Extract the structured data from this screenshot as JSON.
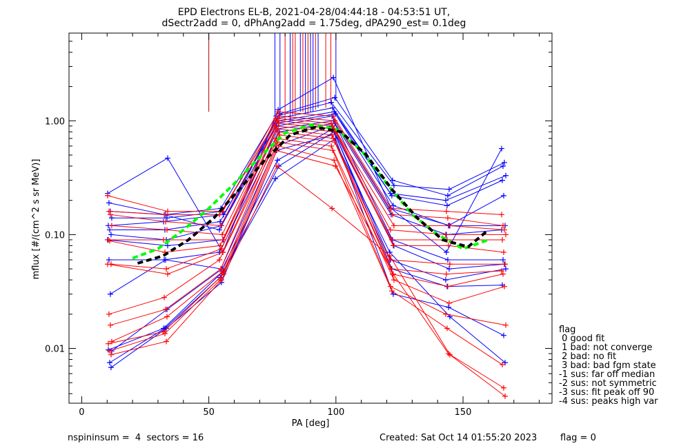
{
  "title": {
    "line1": "EPD Electrons EL-B, 2021-04-28/04:44:18 - 04:53:51 UT,",
    "line2": "dSectr2add = 0, dPhAng2add = 1.75deg, dPA290_est=   0.1deg"
  },
  "footer": {
    "left": "nspininsum =  4  sectors = 16",
    "created": "Created: Sat Oct 14 01:55:20 2023",
    "flag": "flag = 0"
  },
  "legend": {
    "heading": "flag",
    "items": [
      " 0 good fit",
      " 1 bad: not converge",
      " 2 bad: no fit",
      " 3 bad: bad fgm state",
      "-1 sus: far off median",
      "-2 sus: not symmetric",
      "-3 sus: fit peak off 90",
      "-4 sus: peaks high var"
    ]
  },
  "colors": {
    "blue": "#0000ff",
    "red": "#ff0000",
    "darkred": "#b00000",
    "green": "#00ff00",
    "black": "#000000"
  },
  "chart_data": {
    "type": "line",
    "xlabel": "PA [deg]",
    "ylabel": "mflux [#/(cm^2 s sr MeV)]",
    "xlim": [
      -5,
      185
    ],
    "ylim": [
      0.0033,
      5.9
    ],
    "yscale": "log",
    "x_ticks": [
      0,
      50,
      100,
      150
    ],
    "y_ticks": [
      {
        "value": 0.01,
        "label": "0.01"
      },
      {
        "value": 0.1,
        "label": "0.10"
      },
      {
        "value": 1.0,
        "label": "1.00"
      }
    ],
    "pa_bins": [
      11,
      33,
      55,
      77,
      99,
      122,
      144,
      166
    ],
    "series": [
      {
        "color": "blue",
        "values": [
          0.23,
          0.47,
          0.07,
          1.25,
          2.4,
          0.17,
          0.07,
          0.57
        ]
      },
      {
        "color": "blue",
        "values": [
          0.19,
          0.15,
          0.11,
          1.15,
          1.6,
          0.3,
          0.22,
          0.4
        ]
      },
      {
        "color": "blue",
        "values": [
          0.16,
          0.15,
          0.17,
          1.1,
          1.45,
          0.27,
          0.25,
          0.43
        ]
      },
      {
        "color": "blue",
        "values": [
          0.14,
          0.14,
          0.16,
          1.05,
          1.3,
          0.23,
          0.2,
          0.33
        ]
      },
      {
        "color": "blue",
        "values": [
          0.12,
          0.13,
          0.15,
          1.0,
          1.2,
          0.22,
          0.18,
          0.3
        ]
      },
      {
        "color": "blue",
        "values": [
          0.11,
          0.11,
          0.13,
          0.95,
          1.15,
          0.18,
          0.12,
          0.22
        ]
      },
      {
        "color": "blue",
        "values": [
          0.1,
          0.09,
          0.12,
          0.9,
          1.1,
          0.17,
          0.12,
          0.12
        ]
      },
      {
        "color": "blue",
        "values": [
          0.09,
          0.08,
          0.09,
          0.85,
          1.0,
          0.15,
          0.1,
          0.11
        ]
      },
      {
        "color": "blue",
        "values": [
          0.06,
          0.06,
          0.07,
          0.8,
          0.95,
          0.09,
          0.06,
          0.06
        ]
      },
      {
        "color": "blue",
        "values": [
          0.03,
          0.06,
          0.05,
          0.6,
          0.9,
          0.08,
          0.05,
          0.055
        ]
      },
      {
        "color": "blue",
        "values": [
          0.0095,
          0.022,
          0.05,
          0.45,
          0.85,
          0.06,
          0.04,
          0.05
        ]
      },
      {
        "color": "blue",
        "values": [
          0.0097,
          0.015,
          0.048,
          0.4,
          0.8,
          0.05,
          0.035,
          0.036
        ]
      },
      {
        "color": "blue",
        "values": [
          0.0075,
          0.015,
          0.042,
          0.31,
          0.7,
          0.03,
          0.023,
          0.013
        ]
      },
      {
        "color": "blue",
        "values": [
          0.0068,
          0.015,
          0.038,
          0.55,
          0.75,
          0.07,
          0.019,
          0.0075
        ]
      },
      {
        "color": "red",
        "values": [
          0.22,
          0.16,
          0.16,
          1.2,
          1.1,
          0.17,
          0.16,
          0.15
        ]
      },
      {
        "color": "red",
        "values": [
          0.16,
          0.15,
          0.15,
          1.1,
          1.0,
          0.15,
          0.14,
          0.12
        ]
      },
      {
        "color": "red",
        "values": [
          0.15,
          0.13,
          0.12,
          1.05,
          0.95,
          0.12,
          0.12,
          0.11
        ]
      },
      {
        "color": "red",
        "values": [
          0.12,
          0.11,
          0.1,
          1.0,
          0.9,
          0.11,
          0.1,
          0.1
        ]
      },
      {
        "color": "red",
        "values": [
          0.09,
          0.09,
          0.09,
          0.95,
          0.85,
          0.09,
          0.09,
          0.09
        ]
      },
      {
        "color": "red",
        "values": [
          0.088,
          0.07,
          0.08,
          0.9,
          0.8,
          0.08,
          0.08,
          0.07
        ]
      },
      {
        "color": "red",
        "values": [
          0.055,
          0.05,
          0.075,
          0.85,
          0.75,
          0.06,
          0.055,
          0.055
        ]
      },
      {
        "color": "red",
        "values": [
          0.055,
          0.045,
          0.07,
          0.8,
          0.7,
          0.05,
          0.045,
          0.048
        ]
      },
      {
        "color": "red",
        "values": [
          0.02,
          0.028,
          0.06,
          0.75,
          0.65,
          0.045,
          0.035,
          0.045
        ]
      },
      {
        "color": "red",
        "values": [
          0.016,
          0.022,
          0.05,
          0.7,
          0.6,
          0.04,
          0.025,
          0.035
        ]
      },
      {
        "color": "red",
        "values": [
          0.0115,
          0.019,
          0.047,
          0.65,
          0.55,
          0.035,
          0.02,
          0.016
        ]
      },
      {
        "color": "red",
        "values": [
          0.011,
          0.014,
          0.045,
          0.6,
          0.45,
          0.032,
          0.015,
          0.0072
        ]
      },
      {
        "color": "red",
        "values": [
          0.0095,
          0.0135,
          0.04,
          0.55,
          0.4,
          0.045,
          0.009,
          0.0045
        ]
      },
      {
        "color": "red",
        "values": [
          0.0088,
          0.0115,
          0.04,
          0.4,
          0.17,
          0.065,
          0.0088,
          0.0038
        ]
      }
    ],
    "spikes": [
      {
        "x": 50,
        "y_from": 1.2,
        "color": "darkred"
      },
      {
        "x": 76,
        "y_from": 1.1,
        "color": "blue"
      },
      {
        "x": 78,
        "y_from": 1.1,
        "color": "blue"
      },
      {
        "x": 80,
        "y_from": 1.0,
        "color": "red"
      },
      {
        "x": 82,
        "y_from": 1.0,
        "color": "blue"
      },
      {
        "x": 83,
        "y_from": 1.1,
        "color": "red"
      },
      {
        "x": 84,
        "y_from": 1.1,
        "color": "red"
      },
      {
        "x": 86,
        "y_from": 1.2,
        "color": "blue"
      },
      {
        "x": 87,
        "y_from": 1.2,
        "color": "red"
      },
      {
        "x": 88,
        "y_from": 1.15,
        "color": "blue"
      },
      {
        "x": 89,
        "y_from": 1.15,
        "color": "red"
      },
      {
        "x": 90,
        "y_from": 1.2,
        "color": "blue"
      },
      {
        "x": 91,
        "y_from": 1.2,
        "color": "blue"
      },
      {
        "x": 92,
        "y_from": 1.25,
        "color": "red"
      },
      {
        "x": 93,
        "y_from": 1.3,
        "color": "blue"
      },
      {
        "x": 96,
        "y_from": 1.3,
        "color": "red"
      },
      {
        "x": 98,
        "y_from": 1.4,
        "color": "red"
      },
      {
        "x": 100,
        "y_from": 1.5,
        "color": "blue"
      }
    ],
    "fit_curves": [
      {
        "color": "green",
        "style": "dashed",
        "x": [
          20,
          30,
          40,
          50,
          60,
          70,
          80,
          90,
          100,
          110,
          120,
          130,
          140,
          150,
          160
        ],
        "y": [
          0.062,
          0.075,
          0.11,
          0.17,
          0.28,
          0.48,
          0.78,
          0.92,
          0.85,
          0.55,
          0.28,
          0.15,
          0.1,
          0.075,
          0.09
        ]
      },
      {
        "color": "black",
        "style": "dashed",
        "x": [
          22,
          32,
          42,
          52,
          62,
          72,
          82,
          92,
          102,
          112,
          122,
          132,
          142,
          152,
          160
        ],
        "y": [
          0.056,
          0.065,
          0.09,
          0.14,
          0.25,
          0.45,
          0.75,
          0.88,
          0.8,
          0.5,
          0.25,
          0.14,
          0.09,
          0.078,
          0.11
        ]
      }
    ]
  }
}
